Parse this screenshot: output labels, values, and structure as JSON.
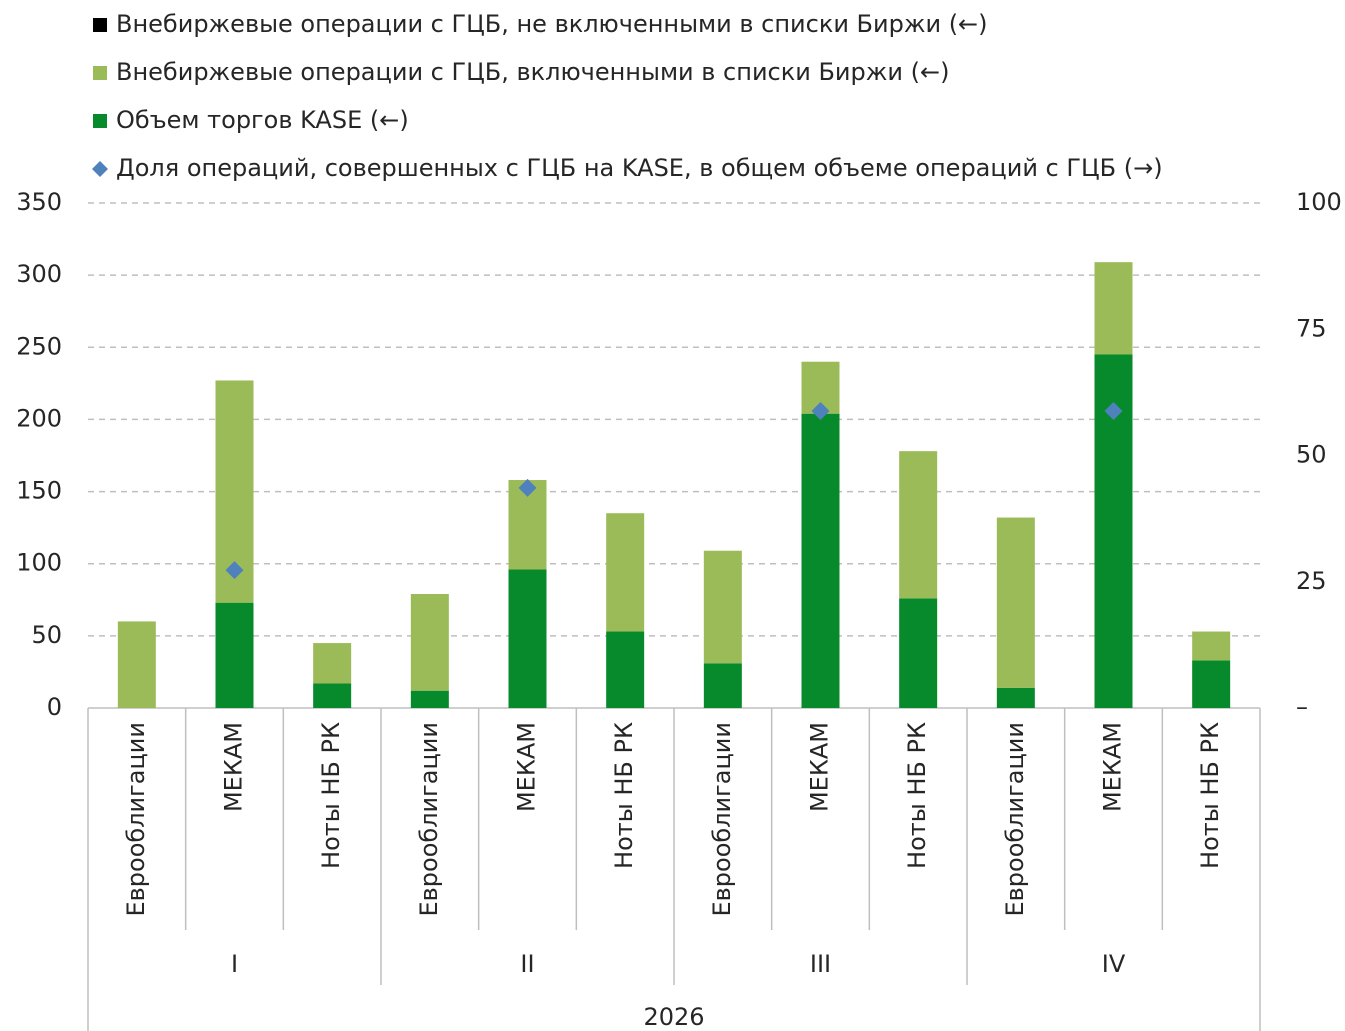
{
  "chart_data": {
    "type": "stacked_bar",
    "categories": [
      "Еврооблигации",
      "МЕКАМ",
      "Ноты НБ РК",
      "Еврооблигации",
      "МЕКАМ",
      "Ноты НБ РК",
      "Еврооблигации",
      "МЕКАМ",
      "Ноты НБ РК",
      "Еврооблигации",
      "МЕКАМ",
      "Ноты НБ РК"
    ],
    "groups": [
      "I",
      "II",
      "III",
      "IV"
    ],
    "year": "2026",
    "series": [
      {
        "name": "Внебиржевые операции с ГЦБ, не включенными в списки Биржи (←)",
        "color": "#000000",
        "values": [
          0,
          0,
          0,
          0,
          0,
          0,
          0,
          0,
          0,
          0,
          0,
          0
        ]
      },
      {
        "name": "Внебиржевые операции с ГЦБ, включенными в списки Биржи (←)",
        "color": "#9bbb59",
        "values": [
          60,
          154,
          28,
          67,
          62,
          82,
          78,
          36,
          102,
          118,
          64,
          20
        ]
      },
      {
        "name": "Объем торгов KASE (←)",
        "color": "#078a2c",
        "values": [
          0,
          73,
          17,
          12,
          96,
          53,
          31,
          204,
          76,
          14,
          245,
          33
        ]
      },
      {
        "name": "Доля операций, совершенных с ГЦБ на KASE, в общем объеме операций с ГЦБ (→)",
        "color": "#4f81bd",
        "axis": "y2",
        "type": "scatter",
        "values": [
          null,
          27.3,
          null,
          null,
          43.6,
          null,
          null,
          58.8,
          null,
          null,
          58.8,
          null
        ]
      }
    ],
    "ylim": [
      0,
      350
    ],
    "yticks": [
      0,
      50,
      100,
      150,
      200,
      250,
      300,
      350
    ],
    "y2lim": [
      0,
      100
    ],
    "y2ticks": [
      {
        "value": 0,
        "label": "–"
      },
      25,
      50,
      75,
      100
    ],
    "grid": true
  }
}
